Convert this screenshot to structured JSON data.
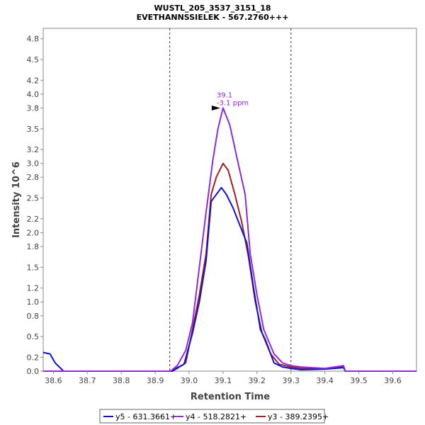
{
  "chart_data": {
    "type": "line",
    "title": "WUSTL_205_3537_3151_18",
    "subtitle": "EVETHANNSSIELEK - 567.2760+++",
    "xlabel": "Retention Time",
    "ylabel": "Intensity 10^6",
    "xlim": [
      38.57,
      39.67
    ],
    "ylim": [
      0,
      4.95
    ],
    "x_ticks": [
      38.6,
      38.7,
      38.8,
      38.9,
      39.0,
      39.1,
      39.2,
      39.3,
      39.4,
      39.5,
      39.6
    ],
    "x_tick_labels": [
      "38.6",
      "38.7",
      "38.8",
      "38.9",
      "39.0",
      "39.1",
      "39.2",
      "39.3",
      "39.4",
      "39.5",
      "39.6"
    ],
    "y_ticks": [
      0.0,
      0.2,
      0.5,
      0.8,
      1.0,
      1.2,
      1.5,
      1.8,
      2.0,
      2.2,
      2.5,
      2.8,
      3.0,
      3.2,
      3.5,
      3.8,
      4.0,
      4.2,
      4.5,
      4.8
    ],
    "y_tick_labels": [
      "0.0",
      "0.2",
      "0.5",
      "0.8",
      "1.0",
      "1.2",
      "1.5",
      "1.8",
      "2.0",
      "2.2",
      "2.5",
      "2.8",
      "3.0",
      "3.2",
      "3.5",
      "3.8",
      "4.0",
      "4.2",
      "4.5",
      "4.8"
    ],
    "boundaries": [
      38.943,
      39.3
    ],
    "annotation": {
      "x": 39.1,
      "y": 3.8,
      "lines": [
        "39.1",
        "-3.1 ppm"
      ],
      "color": "#8e2bd6"
    },
    "legend_position": "bottom",
    "grid": false,
    "series": [
      {
        "name": "y5 - 631.3661+",
        "color": "#1010d8",
        "points": [
          [
            38.57,
            0.27
          ],
          [
            38.59,
            0.25
          ],
          [
            38.605,
            0.12
          ],
          [
            38.63,
            0.0
          ],
          [
            38.95,
            0.0
          ],
          [
            38.965,
            0.05
          ],
          [
            38.985,
            0.1
          ],
          [
            39.01,
            0.55
          ],
          [
            39.03,
            1.0
          ],
          [
            39.05,
            1.6
          ],
          [
            39.065,
            2.45
          ],
          [
            39.08,
            2.55
          ],
          [
            39.095,
            2.65
          ],
          [
            39.11,
            2.55
          ],
          [
            39.13,
            2.35
          ],
          [
            39.15,
            2.1
          ],
          [
            39.17,
            1.85
          ],
          [
            39.19,
            1.2
          ],
          [
            39.21,
            0.6
          ],
          [
            39.225,
            0.45
          ],
          [
            39.25,
            0.12
          ],
          [
            39.275,
            0.06
          ],
          [
            39.3,
            0.04
          ],
          [
            39.33,
            0.02
          ],
          [
            39.4,
            0.03
          ],
          [
            39.455,
            0.05
          ],
          [
            39.46,
            0.0
          ],
          [
            39.67,
            0.0
          ]
        ]
      },
      {
        "name": "y4 - 518.2821+",
        "color": "#8e2bd6",
        "points": [
          [
            38.57,
            0.0
          ],
          [
            38.945,
            0.0
          ],
          [
            38.965,
            0.08
          ],
          [
            38.99,
            0.3
          ],
          [
            39.01,
            0.7
          ],
          [
            39.03,
            1.5
          ],
          [
            39.05,
            2.3
          ],
          [
            39.07,
            3.05
          ],
          [
            39.085,
            3.5
          ],
          [
            39.1,
            3.8
          ],
          [
            39.12,
            3.55
          ],
          [
            39.14,
            3.1
          ],
          [
            39.165,
            2.55
          ],
          [
            39.18,
            1.7
          ],
          [
            39.2,
            1.1
          ],
          [
            39.22,
            0.6
          ],
          [
            39.25,
            0.25
          ],
          [
            39.275,
            0.12
          ],
          [
            39.3,
            0.08
          ],
          [
            39.33,
            0.06
          ],
          [
            39.4,
            0.04
          ],
          [
            39.455,
            0.08
          ],
          [
            39.46,
            0.0
          ],
          [
            39.67,
            0.0
          ]
        ]
      },
      {
        "name": "y3 - 389.2395+",
        "color": "#a31e1e",
        "points": [
          [
            38.57,
            0.0
          ],
          [
            38.95,
            0.0
          ],
          [
            38.965,
            0.04
          ],
          [
            38.99,
            0.12
          ],
          [
            39.01,
            0.6
          ],
          [
            39.03,
            1.1
          ],
          [
            39.05,
            1.7
          ],
          [
            39.065,
            2.55
          ],
          [
            39.08,
            2.8
          ],
          [
            39.1,
            3.0
          ],
          [
            39.115,
            2.9
          ],
          [
            39.135,
            2.55
          ],
          [
            39.155,
            2.15
          ],
          [
            39.175,
            1.65
          ],
          [
            39.195,
            1.0
          ],
          [
            39.215,
            0.55
          ],
          [
            39.24,
            0.25
          ],
          [
            39.265,
            0.1
          ],
          [
            39.3,
            0.06
          ],
          [
            39.33,
            0.04
          ],
          [
            39.4,
            0.03
          ],
          [
            39.455,
            0.06
          ],
          [
            39.46,
            0.0
          ],
          [
            39.67,
            0.0
          ]
        ]
      }
    ]
  }
}
